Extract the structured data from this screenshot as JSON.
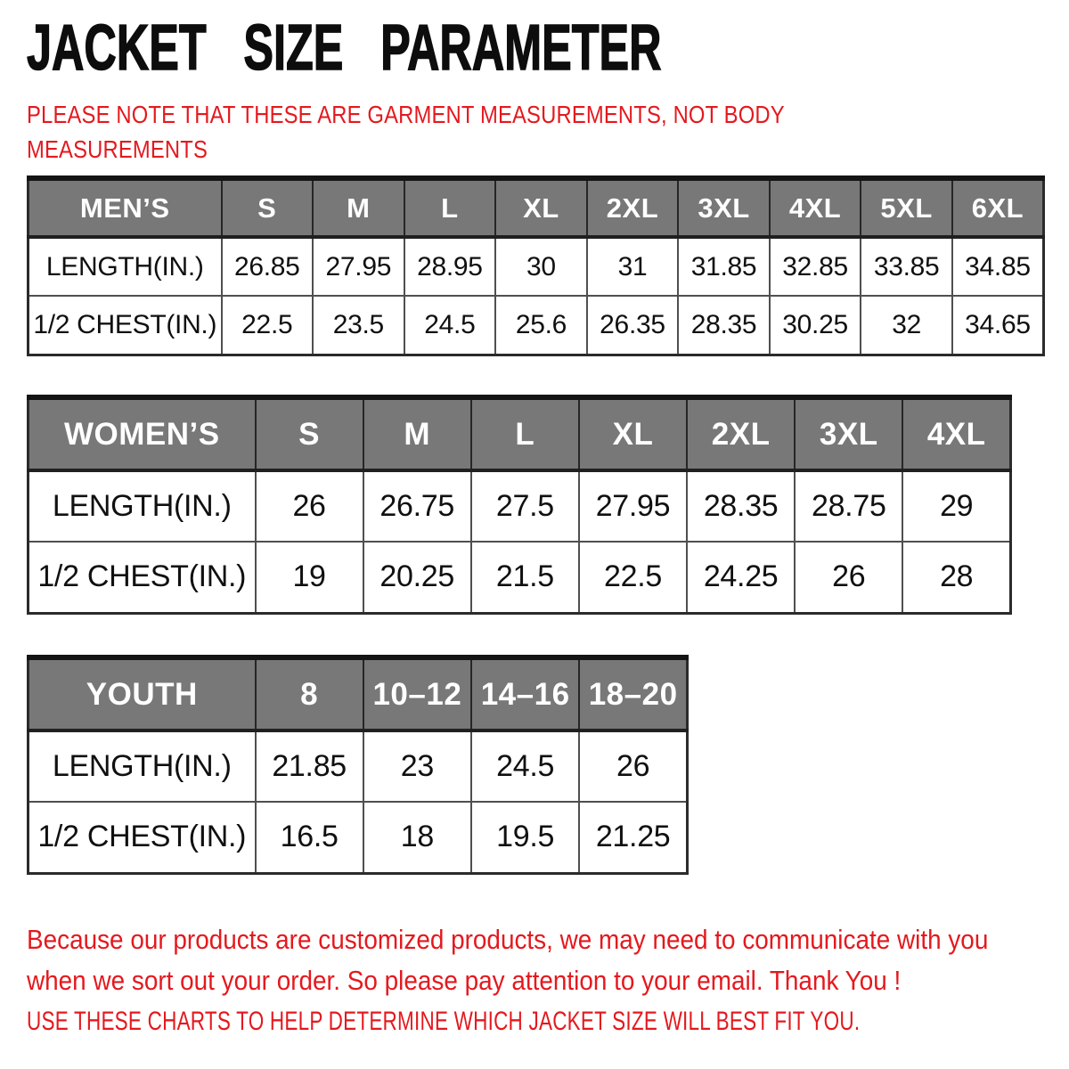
{
  "title": "JACKET SIZE PARAMETER",
  "note": "PLEASE NOTE THAT THESE ARE GARMENT MEASUREMENTS, NOT BODY\nMEASUREMENTS",
  "colors": {
    "accent_red": "#e4191e",
    "header_gray": "#787878",
    "border_dark": "#2b2b2b"
  },
  "tables": [
    {
      "id": "men",
      "title": "MEN’S",
      "header": [
        "MEN’S",
        "S",
        "M",
        "L",
        "XL",
        "2XL",
        "3XL",
        "4XL",
        "5XL",
        "6XL"
      ],
      "rows": [
        {
          "label": "LENGTH(IN.)",
          "values": [
            "26.85",
            "27.95",
            "28.95",
            "30",
            "31",
            "31.85",
            "32.85",
            "33.85",
            "34.85"
          ]
        },
        {
          "label": "1/2 CHEST(IN.)",
          "values": [
            "22.5",
            "23.5",
            "24.5",
            "25.6",
            "26.35",
            "28.35",
            "30.25",
            "32",
            "34.65"
          ]
        }
      ]
    },
    {
      "id": "women",
      "title": "WOMEN’S",
      "header": [
        "WOMEN’S",
        "S",
        "M",
        "L",
        "XL",
        "2XL",
        "3XL",
        "4XL"
      ],
      "rows": [
        {
          "label": "LENGTH(IN.)",
          "values": [
            "26",
            "26.75",
            "27.5",
            "27.95",
            "28.35",
            "28.75",
            "29"
          ]
        },
        {
          "label": "1/2 CHEST(IN.)",
          "values": [
            "19",
            "20.25",
            "21.5",
            "22.5",
            "24.25",
            "26",
            "28"
          ]
        }
      ]
    },
    {
      "id": "youth",
      "title": "YOUTH",
      "header": [
        "YOUTH",
        "8",
        "10–12",
        "14–16",
        "18–20"
      ],
      "rows": [
        {
          "label": "LENGTH(IN.)",
          "values": [
            "21.85",
            "23",
            "24.5",
            "26"
          ]
        },
        {
          "label": "1/2 CHEST(IN.)",
          "values": [
            "16.5",
            "18",
            "19.5",
            "21.25"
          ]
        }
      ]
    }
  ],
  "footer": {
    "lines": [
      "Because our products are customized products, we may need to communicate with you",
      "when we sort out your order. So please pay attention to your email. Thank You !"
    ],
    "usage": "USE THESE CHARTS TO HELP DETERMINE WHICH JACKET SIZE WILL BEST FIT YOU."
  }
}
